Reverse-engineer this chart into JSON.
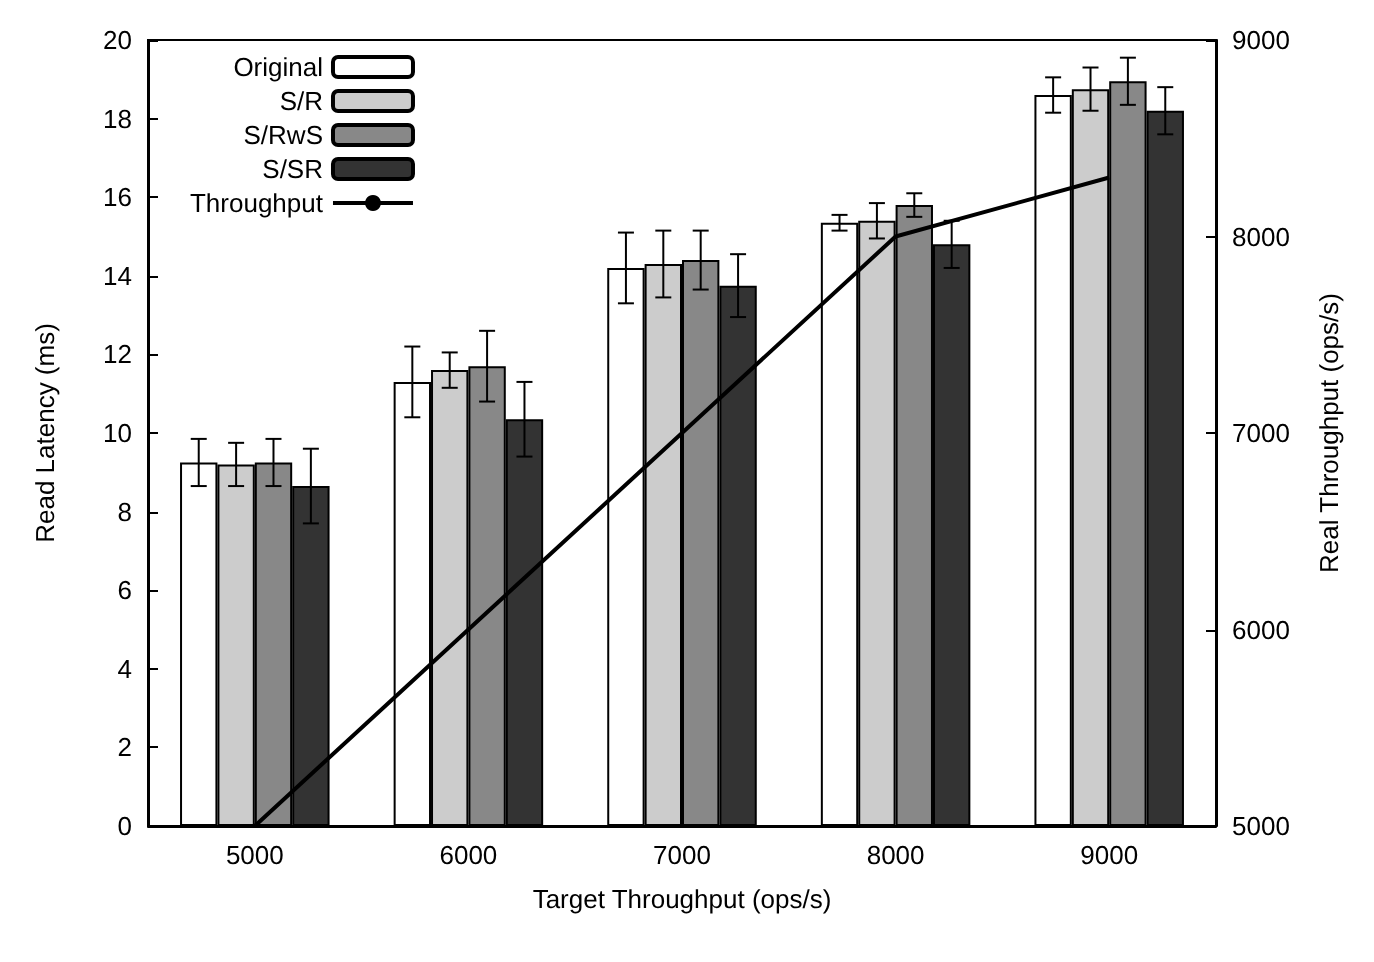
{
  "chart_data": {
    "type": "bar",
    "xlabel": "Target Throughput (ops/s)",
    "ylabel": "Read Latency (ms)",
    "y2label": "Real Throughput (ops/s)",
    "categories": [
      "5000",
      "6000",
      "7000",
      "8000",
      "9000"
    ],
    "series": [
      {
        "name": "Original",
        "color": "#ffffff",
        "values": [
          9.25,
          11.3,
          14.2,
          15.35,
          18.6
        ],
        "errors": [
          0.6,
          0.9,
          0.9,
          0.2,
          0.45
        ]
      },
      {
        "name": "S/R",
        "color": "#cccccc",
        "values": [
          9.2,
          11.6,
          14.3,
          15.4,
          18.75
        ],
        "errors": [
          0.55,
          0.45,
          0.85,
          0.45,
          0.55
        ]
      },
      {
        "name": "S/RwS",
        "color": "#888888",
        "values": [
          9.25,
          11.7,
          14.4,
          15.8,
          18.95
        ],
        "errors": [
          0.6,
          0.9,
          0.75,
          0.3,
          0.6
        ]
      },
      {
        "name": "S/SR",
        "color": "#333333",
        "values": [
          8.65,
          10.35,
          13.75,
          14.8,
          18.2
        ],
        "errors": [
          0.95,
          0.95,
          0.8,
          0.6,
          0.6
        ]
      },
      {
        "name": "Throughput",
        "type": "line",
        "axis": "y2",
        "color": "#000000",
        "values": [
          5000,
          6000,
          7000,
          8000,
          8300
        ]
      }
    ],
    "ylim": [
      0,
      20
    ],
    "yticks": [
      0,
      2,
      4,
      6,
      8,
      10,
      12,
      14,
      16,
      18,
      20
    ],
    "y2lim": [
      5000,
      9000
    ],
    "y2ticks": [
      5000,
      6000,
      7000,
      8000,
      9000
    ],
    "grid": false,
    "legend": "top left",
    "marker": "none",
    "line_style": "solid"
  }
}
